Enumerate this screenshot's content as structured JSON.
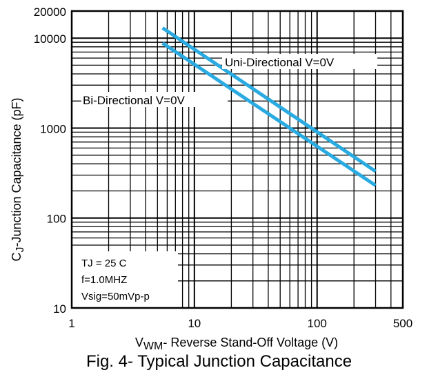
{
  "chart_data": {
    "type": "line",
    "xscale": "log",
    "yscale": "log",
    "xlim": [
      1,
      500
    ],
    "ylim": [
      10,
      20000
    ],
    "grid": true,
    "x_ticks": [
      {
        "value": 1,
        "label": "1"
      },
      {
        "value": 10,
        "label": "10"
      },
      {
        "value": 100,
        "label": "100"
      },
      {
        "value": 500,
        "label": "500"
      }
    ],
    "y_ticks": [
      {
        "value": 10,
        "label": "10"
      },
      {
        "value": 100,
        "label": "100"
      },
      {
        "value": 1000,
        "label": "1000"
      },
      {
        "value": 10000,
        "label": "10000"
      },
      {
        "value": 20000,
        "label": "20000"
      }
    ],
    "xlabel": {
      "prefix": "V",
      "sub": "WM",
      "rest": "- Reverse Stand-Off Voltage (V)"
    },
    "ylabel": {
      "prefix": "C",
      "sub": "J",
      "rest": "-Junction Capacitance (pF)"
    },
    "series": [
      {
        "name": "Uni-Directional V=0V",
        "color": "#29abe2",
        "x": [
          5.5,
          300
        ],
        "y": [
          13000,
          330
        ]
      },
      {
        "name": "Bi-Directional V=0V",
        "color": "#29abe2",
        "x": [
          5.5,
          300
        ],
        "y": [
          8800,
          230
        ]
      }
    ],
    "conditions": [
      "TJ = 25 C",
      "f=1.0MHZ",
      "Vsig=50mVp-p"
    ],
    "caption": "Fig. 4- Typical Junction Capacitance"
  }
}
